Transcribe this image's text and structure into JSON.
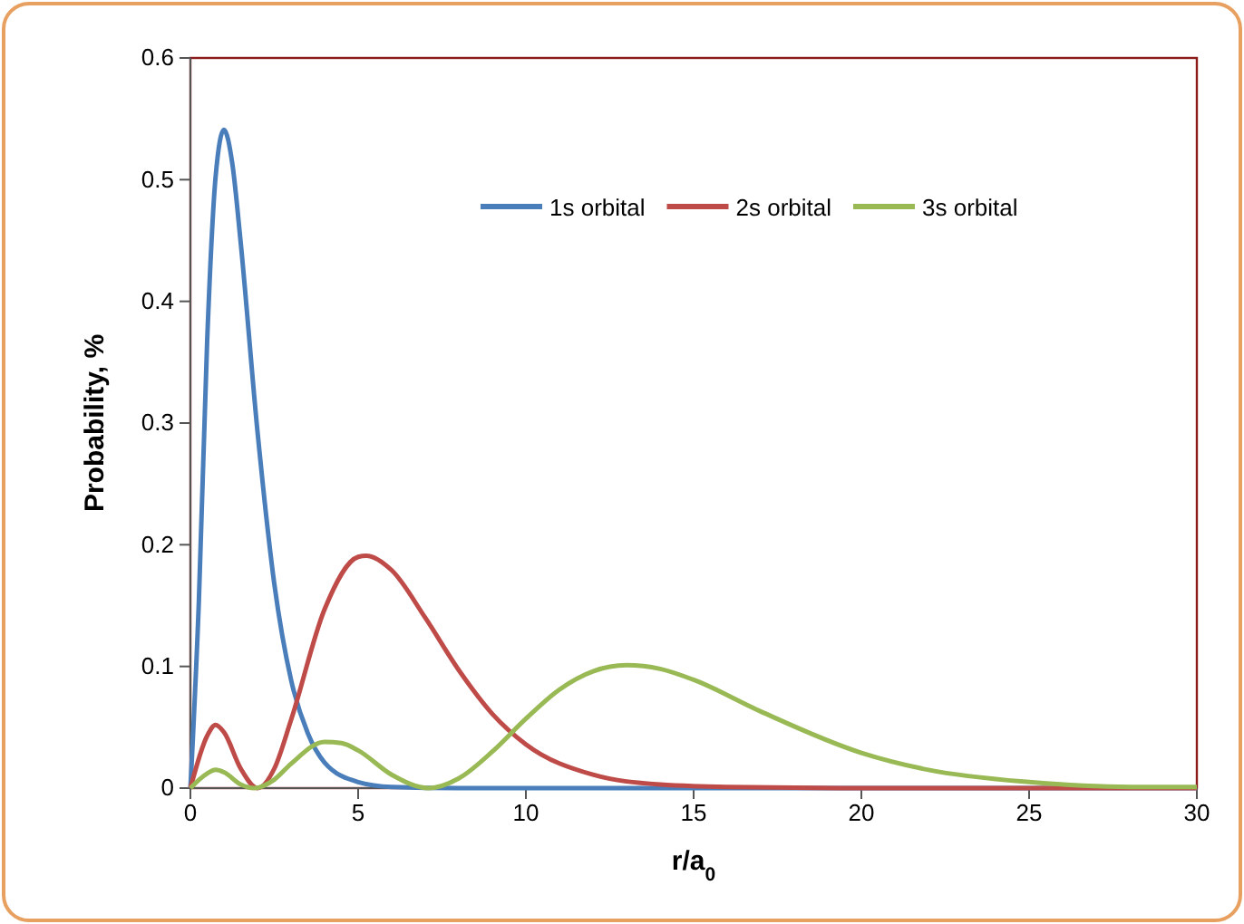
{
  "chart_data": {
    "type": "line",
    "xlabel": "r/a$_{0}$",
    "ylabel": "Probability, %",
    "xlim": [
      0,
      30
    ],
    "xticks": [
      0,
      5,
      10,
      15,
      20,
      25,
      30
    ],
    "ylim": [
      0,
      0.6
    ],
    "yticks": [
      0,
      {
        "value": 0.1,
        "label": "0.1"
      },
      {
        "value": 0.2,
        "label": "0.2"
      },
      {
        "value": 0.3,
        "label": "0.3"
      },
      {
        "value": 0.4,
        "label": "0.4"
      },
      {
        "value": 0.5,
        "label": "0.5"
      },
      {
        "value": 0.6,
        "label": "0.6"
      }
    ],
    "grid": false,
    "legend": "top right",
    "marker": "none",
    "line_style": "solid",
    "series": [
      {
        "name": "1s orbital",
        "color": "#4a7ebb",
        "x": [
          0,
          0.25,
          0.5,
          0.75,
          1,
          1.25,
          1.5,
          2,
          2.5,
          3,
          3.5,
          4,
          5,
          6,
          8,
          30
        ],
        "values": [
          0,
          0.152,
          0.368,
          0.502,
          0.541,
          0.513,
          0.448,
          0.293,
          0.168,
          0.089,
          0.045,
          0.021,
          0.005,
          0.001,
          0,
          0
        ]
      },
      {
        "name": "2s orbital",
        "color": "#be4b48",
        "x": [
          0,
          0.5,
          0.75,
          1,
          1.5,
          2,
          2.5,
          3,
          4,
          5,
          5.24,
          6,
          7,
          8,
          9,
          10,
          12,
          14,
          16,
          20,
          30
        ],
        "values": [
          0,
          0.043,
          0.052,
          0.046,
          0.016,
          0,
          0.016,
          0.056,
          0.147,
          0.19,
          0.191,
          0.179,
          0.14,
          0.097,
          0.061,
          0.036,
          0.011,
          0.003,
          0.001,
          0,
          0
        ]
      },
      {
        "name": "3s orbital",
        "color": "#98b954",
        "x": [
          0,
          0.5,
          0.75,
          1,
          1.5,
          1.9,
          2.5,
          3,
          4,
          4.5,
          5,
          6,
          7.1,
          8,
          9,
          10,
          11,
          12,
          13,
          14,
          15,
          17,
          20,
          22,
          25,
          28,
          30
        ],
        "values": [
          0,
          0.012,
          0.015,
          0.013,
          0.003,
          0,
          0.007,
          0.02,
          0.038,
          0.037,
          0.031,
          0.011,
          0,
          0.008,
          0.03,
          0.057,
          0.081,
          0.096,
          0.101,
          0.098,
          0.089,
          0.063,
          0.029,
          0.015,
          0.005,
          0.001,
          0.001
        ]
      }
    ]
  }
}
